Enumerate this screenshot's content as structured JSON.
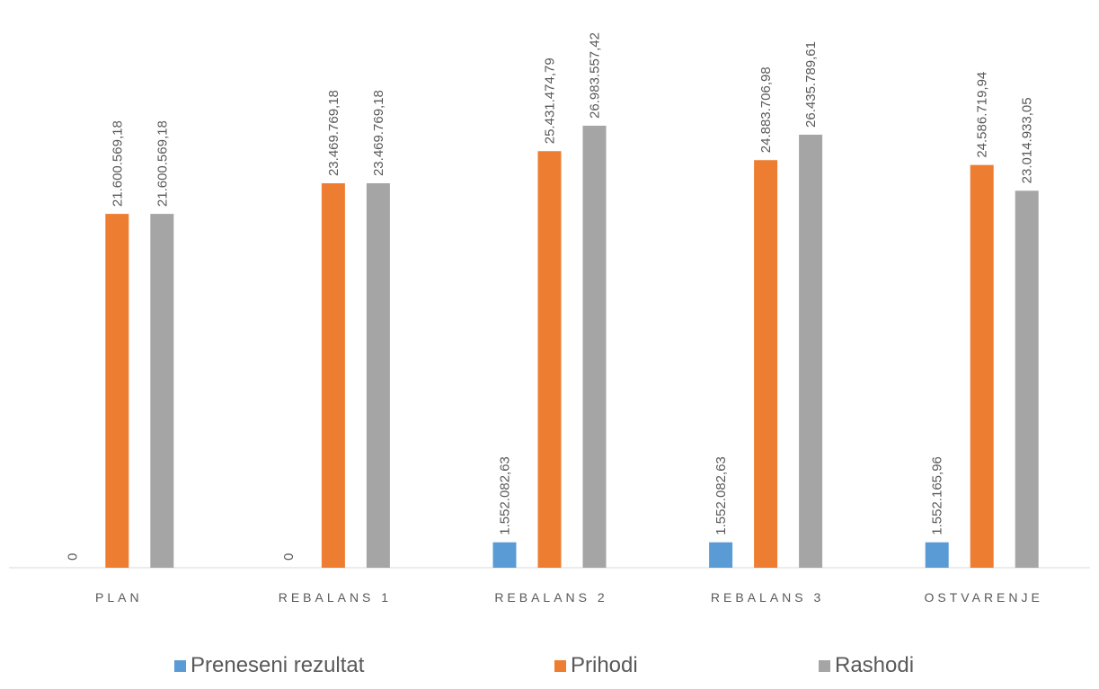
{
  "chart_data": {
    "type": "bar",
    "categories": [
      "PLAN",
      "REBALANS 1",
      "REBALANS 2",
      "REBALANS 3",
      "OSTVARENJE"
    ],
    "series": [
      {
        "name": "Preneseni rezultat",
        "color": "#5B9BD5",
        "values": [
          0,
          0,
          1552082.63,
          1552082.63,
          1552165.96
        ],
        "labels": [
          "0",
          "0",
          "1.552.082,63",
          "1.552.082,63",
          "1.552.165,96"
        ]
      },
      {
        "name": "Prihodi",
        "color": "#ED7D31",
        "values": [
          21600569.18,
          23469769.18,
          25431474.79,
          24883706.98,
          24586719.94
        ],
        "labels": [
          "21.600.569,18",
          "23.469.769,18",
          "25.431.474,79",
          "24.883.706,98",
          "24.586.719,94"
        ]
      },
      {
        "name": "Rashodi",
        "color": "#A5A5A5",
        "values": [
          21600569.18,
          23469769.18,
          26983557.42,
          26435789.61,
          23014933.05
        ],
        "labels": [
          "21.600.569,18",
          "23.469.769,18",
          "26.983.557,42",
          "26.435.789,61",
          "23.014.933,05"
        ]
      }
    ],
    "ylim": [
      0,
      34000000
    ],
    "grid": false,
    "legend_position": "bottom"
  }
}
